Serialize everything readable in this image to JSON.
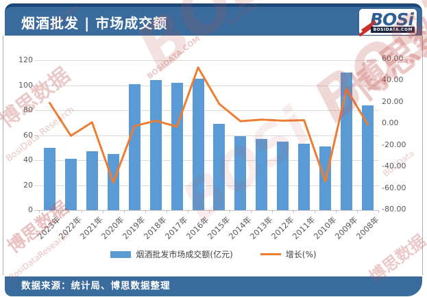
{
  "header": {
    "title": "烟酒批发 | 市场成交额",
    "logo": {
      "text": "BOSi",
      "site": "BOSIDATA.COM"
    }
  },
  "footer": {
    "source": "数据来源：统计局、博思数据整理"
  },
  "watermark": {
    "brand": "BOSi",
    "site": "BOSIDATA.COM",
    "cn": "博思数据",
    "en": "BosiData Research",
    "en_joined": "BosiDataResearch",
    "en_short": "BosiData"
  },
  "colors": {
    "header_blue": "#3a6b9d",
    "header_blue_dark": "#1d4878",
    "bar_blue": "#5B9BD5",
    "line_orange": "#ED7D31",
    "gridline": "#d9d9d9",
    "watermark_red": "#c0504d"
  },
  "chart_data": {
    "type": "bar",
    "title": "烟酒批发 | 市场成交额",
    "categories": [
      "2023年",
      "2022年",
      "2021年",
      "2020年",
      "2019年",
      "2018年",
      "2017年",
      "2016年",
      "2015年",
      "2014年",
      "2013年",
      "2012年",
      "2011年",
      "2010年",
      "2009年",
      "2008年"
    ],
    "series": [
      {
        "name": "烟酒批发市场成交额(亿元)",
        "type": "bar",
        "axis": "left",
        "color": "#5B9BD5",
        "values": [
          50,
          41,
          47,
          45,
          101,
          104,
          102,
          105,
          69,
          59,
          57,
          55,
          53,
          51,
          110,
          84
        ]
      },
      {
        "name": "增长(%)",
        "type": "line",
        "axis": "right",
        "color": "#ED7D31",
        "values": [
          19,
          -11.5,
          1,
          -55,
          -2.5,
          2.5,
          -3,
          52,
          18,
          2,
          3.5,
          2.5,
          3,
          -54,
          32,
          -1
        ]
      }
    ],
    "left_axis": {
      "min": 0,
      "max": 120,
      "step": 20,
      "labels": [
        "0",
        "20",
        "40",
        "60",
        "80",
        "100",
        "120"
      ]
    },
    "right_axis": {
      "min": -80,
      "max": 60,
      "step": 20,
      "labels": [
        "-80.00",
        "-60.00",
        "-40.00",
        "-20.00",
        "0.00",
        "20.00",
        "40.00",
        "60.00"
      ]
    },
    "grid": true,
    "legend_position": "bottom",
    "xlabel": "",
    "ylabel_left": "亿元",
    "ylabel_right": "%"
  }
}
